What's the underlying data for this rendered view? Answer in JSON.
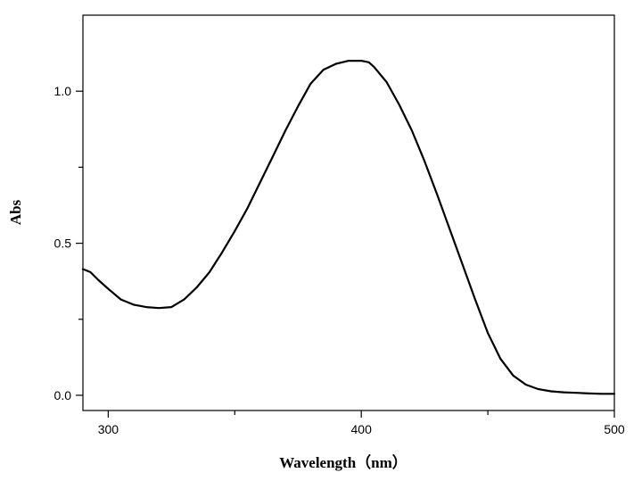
{
  "chart_data": {
    "type": "line",
    "title": "",
    "xlabel": "Wavelength（nm）",
    "ylabel": "Abs",
    "xlim": [
      290,
      500
    ],
    "ylim": [
      -0.05,
      1.25
    ],
    "x_ticks": [
      300,
      400,
      500
    ],
    "x_minor_ticks": [
      350,
      450
    ],
    "y_ticks": [
      0.0,
      0.5,
      1.0
    ],
    "y_tick_labels": [
      "0.0",
      "0.5",
      "1.0"
    ],
    "y_minor_ticks": [
      0.25,
      0.75
    ],
    "grid": false,
    "legend": "none",
    "line_color": "#000000",
    "series": [
      {
        "x": [
          290,
          293,
          296,
          300,
          305,
          310,
          315,
          320,
          325,
          330,
          335,
          340,
          345,
          350,
          355,
          360,
          365,
          370,
          375,
          380,
          385,
          390,
          395,
          400,
          403,
          405,
          410,
          415,
          420,
          425,
          430,
          435,
          440,
          445,
          450,
          455,
          460,
          465,
          470,
          475,
          480,
          485,
          490,
          495,
          500
        ],
        "y": [
          0.415,
          0.405,
          0.38,
          0.35,
          0.315,
          0.298,
          0.29,
          0.287,
          0.29,
          0.315,
          0.355,
          0.405,
          0.47,
          0.54,
          0.615,
          0.7,
          0.785,
          0.87,
          0.95,
          1.025,
          1.07,
          1.09,
          1.1,
          1.1,
          1.095,
          1.08,
          1.03,
          0.955,
          0.87,
          0.77,
          0.66,
          0.545,
          0.43,
          0.315,
          0.205,
          0.12,
          0.065,
          0.035,
          0.02,
          0.013,
          0.01,
          0.008,
          0.006,
          0.005,
          0.005
        ]
      }
    ]
  }
}
